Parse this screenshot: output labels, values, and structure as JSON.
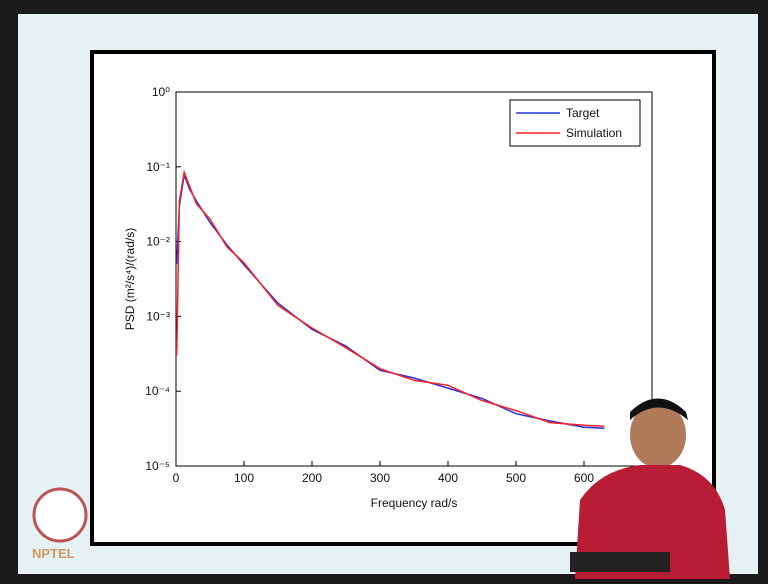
{
  "watermark": "NPTEL",
  "chart_data": {
    "type": "line",
    "xlabel": "Frequency rad/s",
    "ylabel": "PSD (m²/s⁴)/(rad/s)",
    "x": [
      1,
      5,
      12,
      20,
      30,
      50,
      75,
      100,
      150,
      200,
      250,
      300,
      350,
      400,
      450,
      500,
      550,
      600,
      630
    ],
    "series": [
      {
        "name": "Target",
        "color": "#2233dd",
        "values": [
          0.005,
          0.03,
          0.078,
          0.05,
          0.035,
          0.018,
          0.009,
          0.0049,
          0.0015,
          0.00067,
          0.0004,
          0.00019,
          0.00015,
          0.00011,
          8e-05,
          5e-05,
          4e-05,
          3.3e-05,
          3.2e-05
        ]
      },
      {
        "name": "Simulation",
        "color": "#ff2020",
        "values": [
          0.0003,
          0.035,
          0.085,
          0.055,
          0.032,
          0.02,
          0.0085,
          0.0052,
          0.0014,
          0.0007,
          0.00038,
          0.0002,
          0.00014,
          0.00012,
          7.5e-05,
          5.5e-05,
          3.8e-05,
          3.5e-05,
          3.4e-05
        ]
      }
    ],
    "xlim": [
      0,
      700
    ],
    "xticks": [
      0,
      100,
      200,
      300,
      400,
      500,
      600
    ],
    "ylim": [
      1e-05,
      1
    ],
    "yticks": [
      {
        "value": 1e-05,
        "label": "10⁻⁵"
      },
      {
        "value": 0.0001,
        "label": "10⁻⁴"
      },
      {
        "value": 0.001,
        "label": "10⁻³"
      },
      {
        "value": 0.01,
        "label": "10⁻²"
      },
      {
        "value": 0.1,
        "label": "10⁻¹"
      },
      {
        "value": 1,
        "label": "10⁰"
      }
    ],
    "log_y": true,
    "legend": "top-right"
  }
}
